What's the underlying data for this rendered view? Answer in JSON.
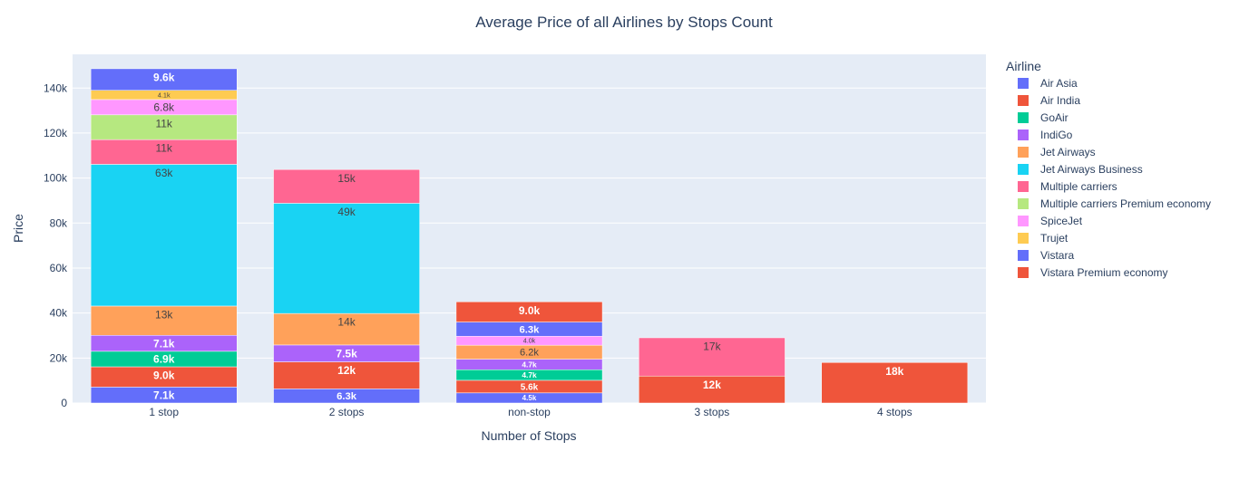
{
  "chart_data": {
    "type": "bar",
    "barmode": "stack",
    "title": "Average Price of all Airlines by Stops Count",
    "xlabel": "Number of Stops",
    "ylabel": "Price",
    "ylim": [
      0,
      155000
    ],
    "yticks": [
      0,
      20000,
      40000,
      60000,
      80000,
      100000,
      120000,
      140000
    ],
    "ytick_labels": [
      "0",
      "20k",
      "40k",
      "60k",
      "80k",
      "100k",
      "120k",
      "140k"
    ],
    "categories": [
      "1 stop",
      "2 stops",
      "non-stop",
      "3 stops",
      "4 stops"
    ],
    "legend_title": "Airline",
    "legend_position": "right",
    "series": [
      {
        "name": "Air Asia",
        "color": "#636efa",
        "values": [
          7100,
          6300,
          4500,
          null,
          null
        ],
        "labels": [
          "7.1k",
          "6.3k",
          "4.5k",
          "",
          ""
        ]
      },
      {
        "name": "Air India",
        "color": "#EF553B",
        "values": [
          9000,
          12000,
          5600,
          12000,
          18000
        ],
        "labels": [
          "9.0k",
          "12k",
          "5.6k",
          "12k",
          "18k"
        ]
      },
      {
        "name": "GoAir",
        "color": "#00cc96",
        "values": [
          6900,
          null,
          4700,
          null,
          null
        ],
        "labels": [
          "6.9k",
          "",
          "4.7k",
          "",
          ""
        ]
      },
      {
        "name": "IndiGo",
        "color": "#ab63fa",
        "values": [
          7100,
          7500,
          4700,
          null,
          null
        ],
        "labels": [
          "7.1k",
          "7.5k",
          "4.7k",
          "",
          ""
        ]
      },
      {
        "name": "Jet Airways",
        "color": "#FFA15A",
        "values": [
          13000,
          14000,
          6200,
          null,
          null
        ],
        "labels": [
          "13k",
          "14k",
          "6.2k",
          "",
          ""
        ]
      },
      {
        "name": "Jet Airways Business",
        "color": "#19d3f3",
        "values": [
          63000,
          49000,
          null,
          null,
          null
        ],
        "labels": [
          "63k",
          "49k",
          "",
          "",
          ""
        ]
      },
      {
        "name": "Multiple carriers",
        "color": "#FF6692",
        "values": [
          11000,
          15000,
          null,
          17000,
          null
        ],
        "labels": [
          "11k",
          "15k",
          "",
          "17k",
          ""
        ]
      },
      {
        "name": "Multiple carriers Premium economy",
        "color": "#B6E880",
        "values": [
          11000,
          null,
          null,
          null,
          null
        ],
        "labels": [
          "11k",
          "",
          "",
          "",
          ""
        ]
      },
      {
        "name": "SpiceJet",
        "color": "#FF97FF",
        "values": [
          6800,
          null,
          4000,
          null,
          null
        ],
        "labels": [
          "6.8k",
          "",
          "4.0k",
          "",
          ""
        ]
      },
      {
        "name": "Trujet",
        "color": "#FECB52",
        "values": [
          4100,
          null,
          null,
          null,
          null
        ],
        "labels": [
          "4.1k",
          "",
          "",
          "",
          ""
        ]
      },
      {
        "name": "Vistara",
        "color": "#636efa",
        "values": [
          9600,
          null,
          6300,
          null,
          null
        ],
        "labels": [
          "9.6k",
          "",
          "6.3k",
          "",
          ""
        ]
      },
      {
        "name": "Vistara Premium economy",
        "color": "#EF553B",
        "values": [
          null,
          null,
          9000,
          null,
          null
        ],
        "labels": [
          "",
          "",
          "9.0k",
          "",
          ""
        ]
      }
    ]
  }
}
